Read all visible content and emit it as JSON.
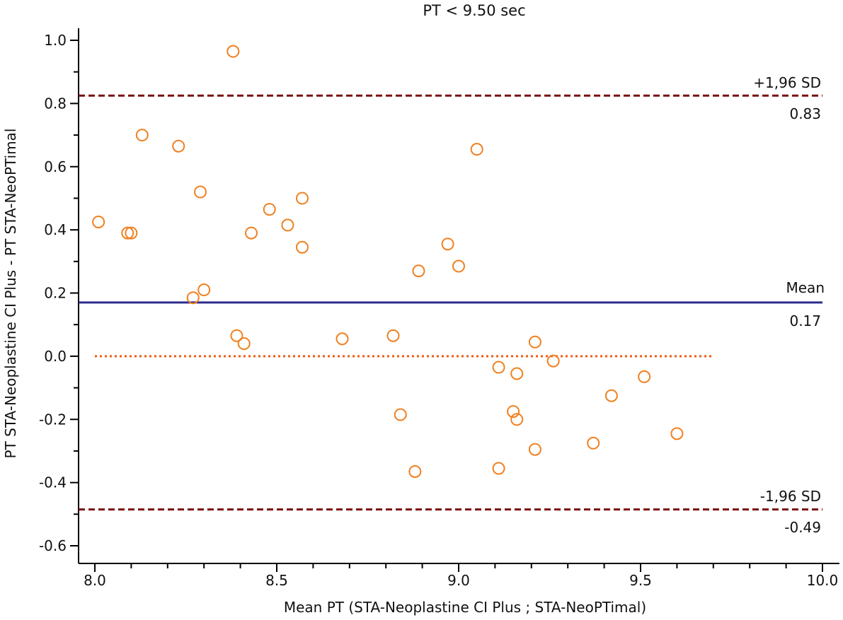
{
  "chart_data": {
    "type": "scatter",
    "title": "PT <  9.50 sec",
    "xlabel": "Mean PT (STA-Neoplastine CI Plus ; STA-NeoPTimal)",
    "ylabel": "PT STA-Neoplastine CI Plus - PT STA-NeoPTimal",
    "xlim": [
      8.0,
      10.0
    ],
    "ylim": [
      -0.6,
      1.0
    ],
    "x_ticks": [
      "8.0",
      "8.5",
      "9.0",
      "9.5",
      "10.0"
    ],
    "y_ticks": [
      "1.0",
      "0.8",
      "0.6",
      "0.4",
      "0.2",
      "0.0",
      "-0.2",
      "-0.4",
      "-0.6"
    ],
    "points": [
      {
        "x": 8.01,
        "y": 0.425
      },
      {
        "x": 8.09,
        "y": 0.39
      },
      {
        "x": 8.1,
        "y": 0.39
      },
      {
        "x": 8.13,
        "y": 0.7
      },
      {
        "x": 8.23,
        "y": 0.665
      },
      {
        "x": 8.27,
        "y": 0.185
      },
      {
        "x": 8.29,
        "y": 0.52
      },
      {
        "x": 8.3,
        "y": 0.21
      },
      {
        "x": 8.38,
        "y": 0.965
      },
      {
        "x": 8.39,
        "y": 0.065
      },
      {
        "x": 8.41,
        "y": 0.04
      },
      {
        "x": 8.43,
        "y": 0.39
      },
      {
        "x": 8.48,
        "y": 0.465
      },
      {
        "x": 8.53,
        "y": 0.415
      },
      {
        "x": 8.57,
        "y": 0.5
      },
      {
        "x": 8.57,
        "y": 0.345
      },
      {
        "x": 8.68,
        "y": 0.055
      },
      {
        "x": 8.82,
        "y": 0.065
      },
      {
        "x": 8.84,
        "y": -0.185
      },
      {
        "x": 8.88,
        "y": -0.365
      },
      {
        "x": 8.89,
        "y": 0.27
      },
      {
        "x": 8.97,
        "y": 0.355
      },
      {
        "x": 9.0,
        "y": 0.285
      },
      {
        "x": 9.05,
        "y": 0.655
      },
      {
        "x": 9.11,
        "y": -0.035
      },
      {
        "x": 9.11,
        "y": -0.355
      },
      {
        "x": 9.15,
        "y": -0.175
      },
      {
        "x": 9.16,
        "y": -0.055
      },
      {
        "x": 9.16,
        "y": -0.2
      },
      {
        "x": 9.21,
        "y": 0.045
      },
      {
        "x": 9.21,
        "y": -0.295
      },
      {
        "x": 9.26,
        "y": -0.015
      },
      {
        "x": 9.37,
        "y": -0.275
      },
      {
        "x": 9.42,
        "y": -0.125
      },
      {
        "x": 9.51,
        "y": -0.065
      },
      {
        "x": 9.6,
        "y": -0.245
      }
    ],
    "mean": {
      "value": 0.17,
      "label": "Mean",
      "value_label": "0.17"
    },
    "upper_loa": {
      "value": 0.825,
      "label": "+1,96 SD",
      "value_label": "0.83"
    },
    "lower_loa": {
      "value": -0.485,
      "label": "-1,96 SD",
      "value_label": "-0.49"
    },
    "zero_line": {
      "value": 0.0,
      "x_end": 9.7
    },
    "grid": false,
    "colors": {
      "points": "#f08020",
      "mean_line": "#2b2b8f",
      "loa_line": "#7a1010",
      "zero_line": "#f05a10",
      "axis": "#000000"
    }
  }
}
